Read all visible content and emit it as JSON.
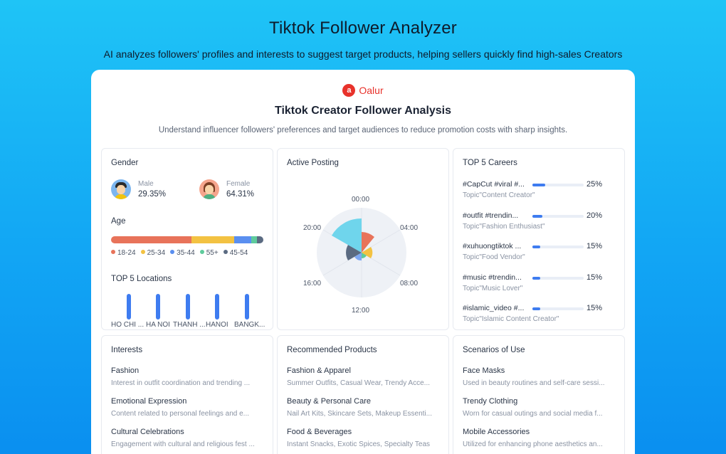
{
  "hero": {
    "title": "Tiktok Follower Analyzer",
    "subtitle": "AI analyzes followers' profiles and interests to suggest target products, helping sellers quickly find high-sales Creators"
  },
  "brand": {
    "logo_glyph": "a",
    "name": "Oalur",
    "color": "#e8322b"
  },
  "panel": {
    "title": "Tiktok Creator Follower Analysis",
    "subtitle": "Understand influencer followers' preferences and target audiences to reduce promotion costs with sharp insights."
  },
  "gender": {
    "title": "Gender",
    "male": {
      "label": "Male",
      "value": "29.35%",
      "icon": "male-avatar-icon"
    },
    "female": {
      "label": "Female",
      "value": "64.31%",
      "icon": "female-avatar-icon"
    }
  },
  "age": {
    "title": "Age",
    "segments": [
      {
        "label": "18-24",
        "share": 0.53,
        "color": "#e8735a"
      },
      {
        "label": "25-34",
        "share": 0.28,
        "color": "#f3c242"
      },
      {
        "label": "35-44",
        "share": 0.11,
        "color": "#5a8ff0"
      },
      {
        "label": "55+",
        "share": 0.04,
        "color": "#5ecb9c"
      },
      {
        "label": "45-54",
        "share": 0.04,
        "color": "#5b6b82"
      }
    ]
  },
  "locations": {
    "title": "TOP 5 Locations",
    "items": [
      "HO CHI ...",
      "HA NOI",
      "THANH ...",
      "HANOI",
      "BANGK..."
    ]
  },
  "posting": {
    "title": "Active Posting",
    "time_labels": [
      "00:00",
      "04:00",
      "08:00",
      "12:00",
      "16:00",
      "20:00"
    ]
  },
  "careers": {
    "title": "TOP 5 Careers",
    "items": [
      {
        "name": "#CapCut #viral #...",
        "topic": "Topic\"Content Creator\"",
        "pct": "25%",
        "fill": 0.25
      },
      {
        "name": "#outfit #trendin...",
        "topic": "Topic\"Fashion Enthusiast\"",
        "pct": "20%",
        "fill": 0.2
      },
      {
        "name": "#xuhuongtiktok ...",
        "topic": "Topic\"Food Vendor\"",
        "pct": "15%",
        "fill": 0.15
      },
      {
        "name": "#music #trendin...",
        "topic": "Topic\"Music Lover\"",
        "pct": "15%",
        "fill": 0.15
      },
      {
        "name": "#islamic_video #...",
        "topic": "Topic\"Islamic Content Creator\"",
        "pct": "15%",
        "fill": 0.15
      }
    ]
  },
  "interests": {
    "title": "Interests",
    "items": [
      {
        "title": "Fashion",
        "desc": "Interest in outfit coordination and trending ..."
      },
      {
        "title": "Emotional Expression",
        "desc": "Content related to personal feelings and e..."
      },
      {
        "title": "Cultural Celebrations",
        "desc": "Engagement with cultural and religious fest ..."
      }
    ]
  },
  "products": {
    "title": "Recommended Products",
    "items": [
      {
        "title": "Fashion & Apparel",
        "desc": "Summer Outfits, Casual Wear, Trendy Acce..."
      },
      {
        "title": "Beauty & Personal Care",
        "desc": "Nail Art Kits, Skincare Sets, Makeup Essenti..."
      },
      {
        "title": "Food & Beverages",
        "desc": "Instant Snacks, Exotic Spices, Specialty Teas"
      }
    ]
  },
  "scenarios": {
    "title": "Scenarios of Use",
    "items": [
      {
        "title": "Face Masks",
        "desc": "Used in beauty routines and self-care sessi..."
      },
      {
        "title": "Trendy Clothing",
        "desc": "Worn for casual outings and social media f..."
      },
      {
        "title": "Mobile Accessories",
        "desc": "Utilized for enhancing phone aesthetics an..."
      }
    ]
  }
}
